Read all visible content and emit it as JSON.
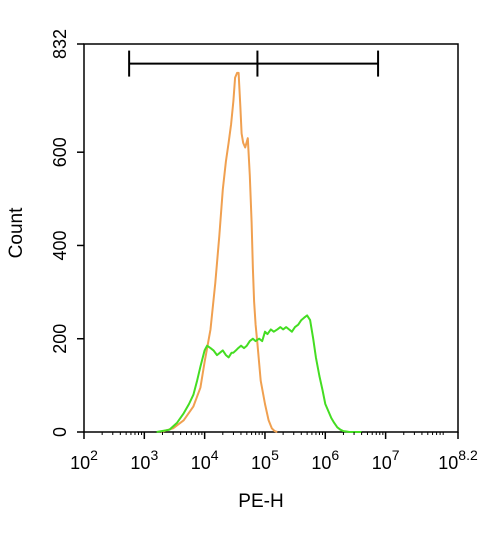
{
  "chart_data": {
    "type": "line",
    "title": "",
    "xlabel": "PE-H",
    "ylabel": "Count",
    "x_scale": "log10",
    "xlim": [
      100,
      158489319
    ],
    "ylim": [
      0,
      832
    ],
    "y_ticks": [
      {
        "value": 0,
        "label": "0"
      },
      {
        "value": 200,
        "label": "200"
      },
      {
        "value": 400,
        "label": "400"
      },
      {
        "value": 600,
        "label": "600"
      },
      {
        "value": 832,
        "label": "832"
      }
    ],
    "x_ticks": [
      {
        "value": 100,
        "base": "10",
        "exp": "2"
      },
      {
        "value": 1000,
        "base": "10",
        "exp": "3"
      },
      {
        "value": 10000,
        "base": "10",
        "exp": "4"
      },
      {
        "value": 100000,
        "base": "10",
        "exp": "5"
      },
      {
        "value": 1000000,
        "base": "10",
        "exp": "6"
      },
      {
        "value": 10000000,
        "base": "10",
        "exp": "7"
      },
      {
        "value": 158489319,
        "base": "10",
        "exp": "8.2"
      }
    ],
    "gate": {
      "x_start": 560,
      "x_mid": 75000,
      "x_end": 7500000,
      "y": 790
    },
    "grid": false,
    "legend": "none",
    "series": [
      {
        "color": "#f0a050",
        "x": [
          1900,
          3000,
          4500,
          6500,
          8500,
          10000,
          12500,
          15000,
          17500,
          20000,
          22500,
          25000,
          27500,
          30000,
          32000,
          34500,
          36500,
          39000,
          41000,
          43500,
          47000,
          52000,
          56000,
          60000,
          63000,
          66000,
          70000,
          75000,
          85000,
          100000,
          115000,
          130000,
          145000,
          160000
        ],
        "y": [
          0,
          8,
          25,
          55,
          95,
          150,
          220,
          320,
          420,
          520,
          580,
          620,
          660,
          710,
          760,
          770,
          770,
          700,
          640,
          620,
          610,
          630,
          550,
          450,
          350,
          280,
          230,
          190,
          110,
          60,
          25,
          8,
          2,
          0
        ]
      },
      {
        "color": "#44dd22",
        "x": [
          1600,
          2600,
          3500,
          4500,
          5500,
          6500,
          7500,
          8500,
          10000,
          11000,
          12500,
          14000,
          16000,
          18000,
          20000,
          22500,
          25000,
          28000,
          30000,
          33000,
          36000,
          40000,
          45000,
          50000,
          56000,
          63000,
          70000,
          80000,
          90000,
          100000,
          110000,
          125000,
          140000,
          160000,
          180000,
          200000,
          225000,
          250000,
          280000,
          315000,
          355000,
          400000,
          445000,
          500000,
          560000,
          630000,
          700000,
          800000,
          900000,
          1000000,
          1120000,
          1260000,
          1400000,
          1580000,
          1780000,
          2000000,
          2240000,
          2500000,
          2820000,
          3160000,
          3550000,
          4000000
        ],
        "y": [
          0,
          5,
          20,
          40,
          60,
          80,
          110,
          140,
          175,
          185,
          180,
          175,
          165,
          170,
          175,
          165,
          160,
          170,
          170,
          175,
          180,
          185,
          180,
          185,
          195,
          200,
          195,
          200,
          195,
          215,
          210,
          220,
          215,
          220,
          225,
          220,
          225,
          220,
          215,
          225,
          230,
          240,
          245,
          250,
          240,
          200,
          160,
          120,
          90,
          60,
          45,
          30,
          20,
          10,
          5,
          2,
          1,
          0,
          0,
          0,
          0,
          0
        ]
      }
    ]
  }
}
